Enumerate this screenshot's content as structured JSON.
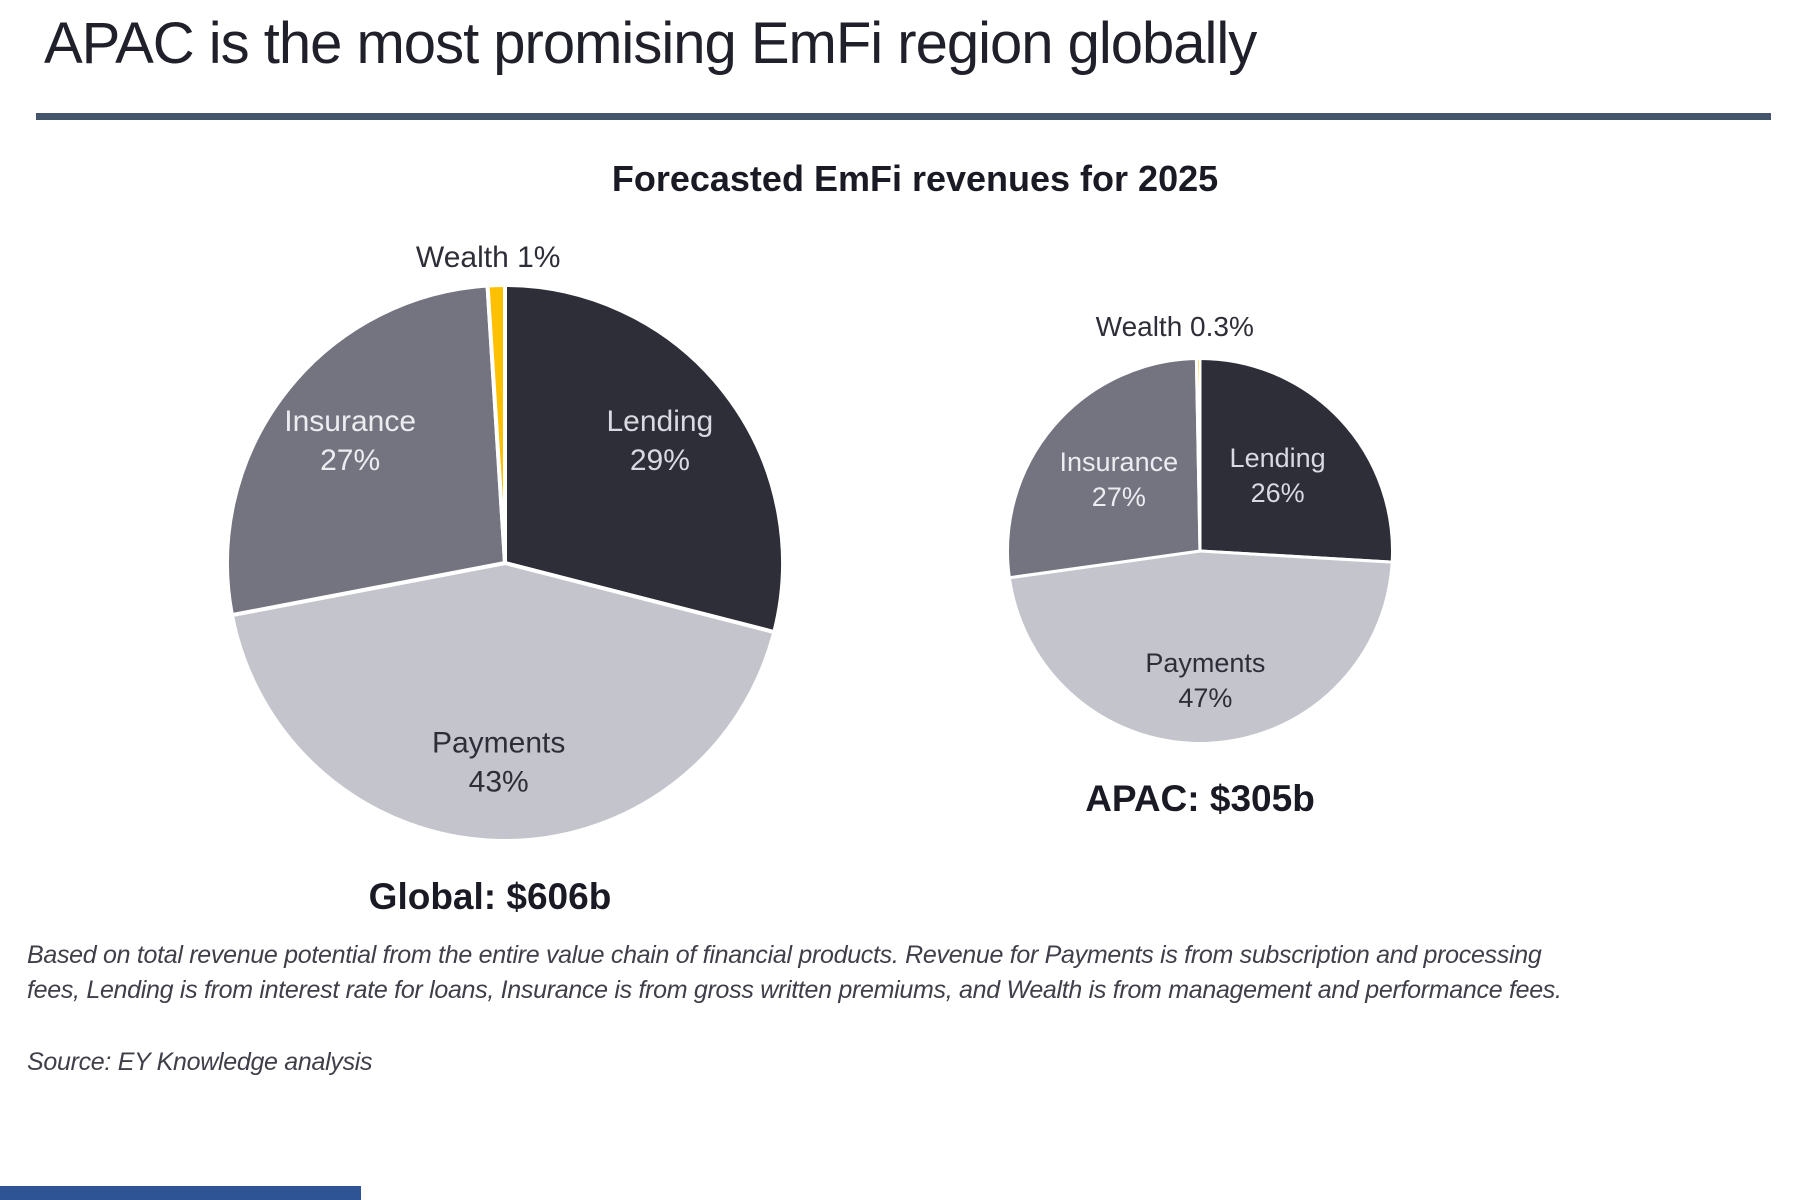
{
  "slide": {
    "title": "APAC is the most promising EmFi region globally",
    "accent_rule_color": "#44546A",
    "bottom_bar_color": "#2F5496"
  },
  "chart_data": [
    {
      "type": "pie",
      "name": "global",
      "title": "Forecasted EmFi revenues for 2025",
      "caption": "Global: $606b",
      "total_label": "$606b",
      "start_angle_deg": 0,
      "legend": "none, labels on slices",
      "slices": [
        {
          "label": "Lending",
          "value": 29,
          "pct_label": "29%",
          "color": "#2E2E38",
          "text_color": "#D9D9E2",
          "placement": "inside"
        },
        {
          "label": "Payments",
          "value": 43,
          "pct_label": "43%",
          "color": "#C4C4CD",
          "text_color": "#2E2E38",
          "placement": "inside"
        },
        {
          "label": "Insurance",
          "value": 27,
          "pct_label": "27%",
          "color": "#747480",
          "text_color": "#ECECF1",
          "placement": "inside"
        },
        {
          "label": "Wealth",
          "value": 1,
          "pct_label": "1%",
          "color": "#FFC000",
          "text_color": "#2E2E38",
          "placement": "outside"
        }
      ]
    },
    {
      "type": "pie",
      "name": "apac",
      "title": "Forecasted EmFi revenues for 2025",
      "caption": "APAC: $305b",
      "total_label": "$305b",
      "start_angle_deg": 0,
      "legend": "none, labels on slices",
      "slices": [
        {
          "label": "Lending",
          "value": 26,
          "pct_label": "26%",
          "color": "#2E2E38",
          "text_color": "#D9D9E2",
          "placement": "inside"
        },
        {
          "label": "Payments",
          "value": 47,
          "pct_label": "47%",
          "color": "#C4C4CD",
          "text_color": "#2E2E38",
          "placement": "inside"
        },
        {
          "label": "Insurance",
          "value": 27,
          "pct_label": "27%",
          "color": "#747480",
          "text_color": "#ECECF1",
          "placement": "inside"
        },
        {
          "label": "Wealth",
          "value": 0.3,
          "pct_label": "0.3%",
          "color": "#FFC000",
          "text_color": "#2E2E38",
          "placement": "outside"
        }
      ]
    }
  ],
  "footnote": {
    "line1": "Based on total revenue potential from the entire value chain of financial products. Revenue for Payments is from subscription and processing",
    "line2": "fees, Lending is from interest rate for loans, Insurance is from gross written premiums, and Wealth is from management and performance fees."
  },
  "source": "Source: EY Knowledge analysis"
}
